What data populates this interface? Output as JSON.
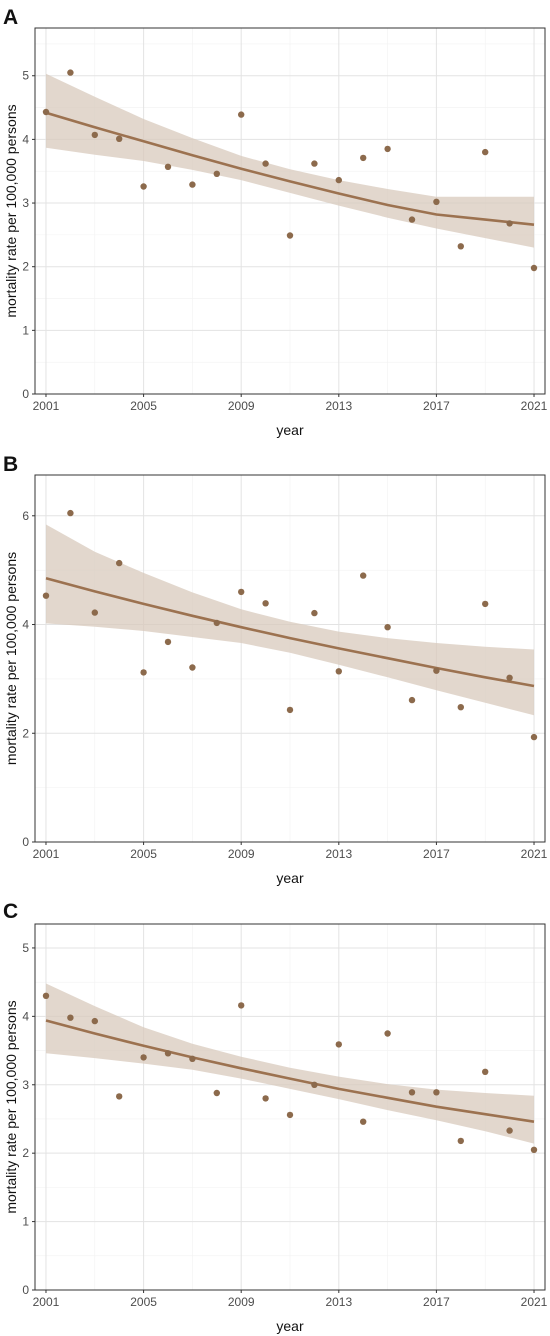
{
  "chart_data": [
    {
      "panel": "A",
      "type": "scatter",
      "xlabel": "year",
      "ylabel": "mortality rate per 100,000 persons",
      "xticks": [
        2001,
        2005,
        2009,
        2013,
        2017,
        2021
      ],
      "yticks": [
        0,
        1,
        2,
        3,
        4,
        5
      ],
      "xlim": [
        2000.55,
        2021.45
      ],
      "ylim": [
        0,
        5.75
      ],
      "grid": true,
      "point_color": "#8c6a4c",
      "x": [
        2001,
        2002,
        2003,
        2004,
        2005,
        2006,
        2007,
        2008,
        2009,
        2010,
        2011,
        2012,
        2013,
        2014,
        2015,
        2016,
        2017,
        2018,
        2019,
        2020,
        2021
      ],
      "y": [
        4.43,
        5.05,
        4.07,
        4.01,
        3.26,
        3.57,
        3.29,
        3.46,
        4.39,
        3.62,
        2.49,
        3.62,
        3.36,
        3.71,
        3.85,
        2.74,
        3.02,
        2.32,
        3.8,
        2.68,
        1.98
      ],
      "trend": {
        "x": [
          2001,
          2003,
          2005,
          2007,
          2009,
          2011,
          2013,
          2015,
          2017,
          2019,
          2021
        ],
        "fit": [
          4.42,
          4.19,
          3.97,
          3.75,
          3.54,
          3.34,
          3.15,
          2.97,
          2.82,
          2.74,
          2.66
        ],
        "lower": [
          3.87,
          3.76,
          3.66,
          3.52,
          3.36,
          3.16,
          2.96,
          2.77,
          2.6,
          2.45,
          2.3
        ],
        "upper": [
          5.03,
          4.67,
          4.32,
          4.02,
          3.74,
          3.53,
          3.36,
          3.22,
          3.1,
          3.1,
          3.1
        ]
      }
    },
    {
      "panel": "B",
      "type": "scatter",
      "xlabel": "year",
      "ylabel": "mortality rate per 100,000 persons",
      "xticks": [
        2001,
        2005,
        2009,
        2013,
        2017,
        2021
      ],
      "yticks": [
        0,
        2,
        4,
        6
      ],
      "xlim": [
        2000.55,
        2021.45
      ],
      "ylim": [
        0,
        6.75
      ],
      "grid": true,
      "point_color": "#8c6a4c",
      "x": [
        2001,
        2002,
        2003,
        2004,
        2005,
        2006,
        2007,
        2008,
        2009,
        2010,
        2011,
        2012,
        2013,
        2014,
        2015,
        2016,
        2017,
        2018,
        2019,
        2020,
        2021
      ],
      "y": [
        4.53,
        6.05,
        4.22,
        5.13,
        3.12,
        3.68,
        3.21,
        4.03,
        4.6,
        4.39,
        2.43,
        4.21,
        3.14,
        4.9,
        3.95,
        2.61,
        3.15,
        2.48,
        4.38,
        3.02,
        1.93
      ],
      "trend": {
        "x": [
          2001,
          2003,
          2005,
          2007,
          2009,
          2011,
          2013,
          2015,
          2017,
          2019,
          2021
        ],
        "fit": [
          4.85,
          4.61,
          4.38,
          4.16,
          3.95,
          3.75,
          3.56,
          3.38,
          3.2,
          3.03,
          2.87
        ],
        "lower": [
          4.02,
          3.96,
          3.88,
          3.77,
          3.66,
          3.48,
          3.26,
          3.03,
          2.79,
          2.56,
          2.33
        ],
        "upper": [
          5.84,
          5.34,
          4.95,
          4.59,
          4.28,
          4.05,
          3.87,
          3.75,
          3.66,
          3.59,
          3.54
        ]
      }
    },
    {
      "panel": "C",
      "type": "scatter",
      "xlabel": "year",
      "ylabel": "mortality rate per 100,000 persons",
      "xticks": [
        2001,
        2005,
        2009,
        2013,
        2017,
        2021
      ],
      "yticks": [
        0,
        1,
        2,
        3,
        4,
        5
      ],
      "xlim": [
        2000.55,
        2021.45
      ],
      "ylim": [
        0,
        5.35
      ],
      "grid": true,
      "point_color": "#8c6a4c",
      "x": [
        2001,
        2002,
        2003,
        2004,
        2005,
        2006,
        2007,
        2008,
        2009,
        2010,
        2011,
        2012,
        2013,
        2014,
        2015,
        2016,
        2017,
        2018,
        2019,
        2020,
        2021
      ],
      "y": [
        4.3,
        3.98,
        3.93,
        2.83,
        3.4,
        3.46,
        3.38,
        2.88,
        4.16,
        2.8,
        2.56,
        3.0,
        3.59,
        2.46,
        3.75,
        2.89,
        2.89,
        2.18,
        3.19,
        2.33,
        2.05
      ],
      "trend": {
        "x": [
          2001,
          2003,
          2005,
          2007,
          2009,
          2011,
          2013,
          2015,
          2017,
          2019,
          2021
        ],
        "fit": [
          3.94,
          3.75,
          3.57,
          3.4,
          3.24,
          3.09,
          2.94,
          2.81,
          2.68,
          2.57,
          2.46
        ],
        "lower": [
          3.46,
          3.39,
          3.31,
          3.22,
          3.09,
          2.94,
          2.79,
          2.63,
          2.48,
          2.32,
          2.14
        ],
        "upper": [
          4.48,
          4.15,
          3.84,
          3.6,
          3.41,
          3.25,
          3.12,
          3.01,
          2.93,
          2.88,
          2.84
        ]
      }
    }
  ]
}
